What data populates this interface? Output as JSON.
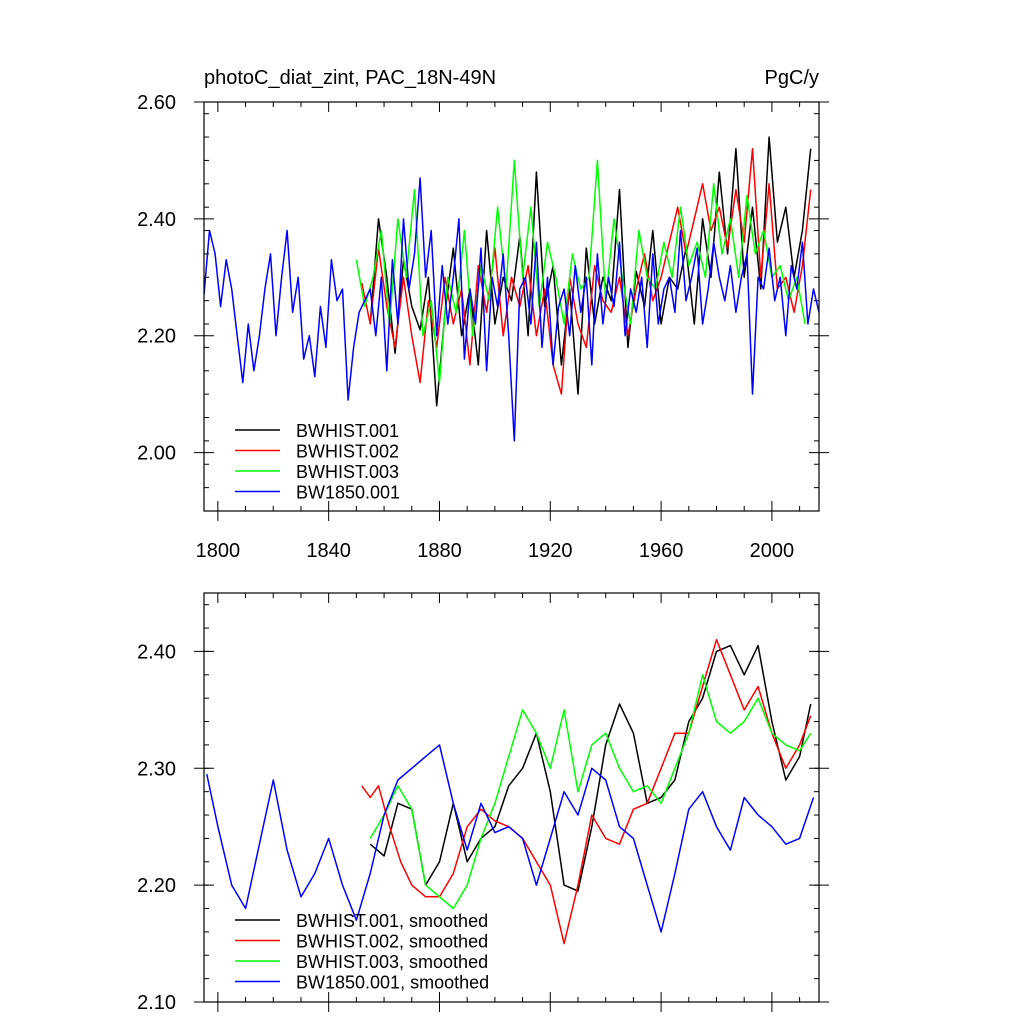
{
  "title_left": "photoC_diat_zint, PAC_18N-49N",
  "title_right": "PgC/y",
  "colors": {
    "BWHIST.001": "#000000",
    "BWHIST.002": "#ff0000",
    "BWHIST.003": "#00ff00",
    "BW1850.001": "#0000ff"
  },
  "chart_data": [
    {
      "type": "line",
      "title": "photoC_diat_zint, PAC_18N-49N",
      "units": "PgC/y",
      "xlim": [
        1795,
        2017
      ],
      "ylim": [
        1.9,
        2.6
      ],
      "xticks": [
        1800,
        1840,
        1880,
        1920,
        1960,
        2000
      ],
      "xticklabels": [
        "1800",
        "1840",
        "1880",
        "1920",
        "1960",
        "2000"
      ],
      "yticks": [
        2.0,
        2.2,
        2.4,
        2.6
      ],
      "yticklabels": [
        "2.00",
        "2.20",
        "2.40",
        "2.60"
      ],
      "legend_position": "bottom-left",
      "series": [
        {
          "name": "BWHIST.001",
          "color": "#000000",
          "x": [
            1855,
            1858,
            1861,
            1864,
            1867,
            1870,
            1873,
            1876,
            1879,
            1882,
            1885,
            1888,
            1891,
            1894,
            1897,
            1900,
            1903,
            1906,
            1909,
            1912,
            1915,
            1918,
            1921,
            1924,
            1927,
            1930,
            1933,
            1936,
            1939,
            1942,
            1945,
            1948,
            1951,
            1954,
            1957,
            1960,
            1963,
            1966,
            1969,
            1972,
            1975,
            1978,
            1981,
            1984,
            1987,
            1990,
            1993,
            1996,
            1999,
            2002,
            2005,
            2008,
            2011,
            2014
          ],
          "y": [
            2.22,
            2.4,
            2.3,
            2.17,
            2.33,
            2.25,
            2.21,
            2.3,
            2.08,
            2.24,
            2.35,
            2.2,
            2.28,
            2.15,
            2.38,
            2.22,
            2.3,
            2.26,
            2.37,
            2.2,
            2.48,
            2.25,
            2.32,
            2.15,
            2.28,
            2.1,
            2.35,
            2.22,
            2.3,
            2.26,
            2.45,
            2.18,
            2.31,
            2.25,
            2.38,
            2.22,
            2.3,
            2.28,
            2.35,
            2.22,
            2.4,
            2.3,
            2.48,
            2.34,
            2.52,
            2.3,
            2.42,
            2.28,
            2.54,
            2.36,
            2.42,
            2.3,
            2.38,
            2.52
          ]
        },
        {
          "name": "BWHIST.002",
          "color": "#ff0000",
          "x": [
            1852,
            1855,
            1858,
            1861,
            1864,
            1867,
            1870,
            1873,
            1876,
            1879,
            1882,
            1885,
            1888,
            1891,
            1894,
            1897,
            1900,
            1903,
            1906,
            1909,
            1912,
            1915,
            1918,
            1921,
            1924,
            1927,
            1930,
            1933,
            1936,
            1939,
            1942,
            1945,
            1948,
            1951,
            1954,
            1957,
            1960,
            1963,
            1966,
            1969,
            1972,
            1975,
            1978,
            1981,
            1984,
            1987,
            1990,
            1993,
            1996,
            1999,
            2002,
            2005,
            2008,
            2011,
            2014
          ],
          "y": [
            2.29,
            2.22,
            2.35,
            2.25,
            2.18,
            2.3,
            2.2,
            2.12,
            2.26,
            2.18,
            2.3,
            2.22,
            2.28,
            2.15,
            2.32,
            2.24,
            2.35,
            2.2,
            2.3,
            2.25,
            2.32,
            2.2,
            2.28,
            2.15,
            2.1,
            2.3,
            2.22,
            2.18,
            2.32,
            2.26,
            2.24,
            2.3,
            2.2,
            2.28,
            2.34,
            2.26,
            2.3,
            2.36,
            2.42,
            2.34,
            2.4,
            2.46,
            2.38,
            2.42,
            2.35,
            2.45,
            2.36,
            2.52,
            2.3,
            2.46,
            2.28,
            2.3,
            2.24,
            2.32,
            2.45
          ]
        },
        {
          "name": "BWHIST.003",
          "color": "#00ff00",
          "x": [
            1850,
            1853,
            1856,
            1859,
            1862,
            1865,
            1868,
            1871,
            1874,
            1877,
            1880,
            1883,
            1886,
            1889,
            1892,
            1895,
            1898,
            1901,
            1904,
            1907,
            1910,
            1913,
            1916,
            1919,
            1922,
            1925,
            1928,
            1931,
            1934,
            1937,
            1940,
            1943,
            1946,
            1949,
            1952,
            1955,
            1958,
            1961,
            1964,
            1967,
            1970,
            1973,
            1976,
            1979,
            1982,
            1985,
            1988,
            1991,
            1994,
            1997,
            2000,
            2003,
            2006,
            2009,
            2012
          ],
          "y": [
            2.33,
            2.25,
            2.3,
            2.38,
            2.22,
            2.4,
            2.3,
            2.45,
            2.2,
            2.26,
            2.12,
            2.3,
            2.24,
            2.38,
            2.2,
            2.32,
            2.26,
            2.42,
            2.28,
            2.5,
            2.3,
            2.42,
            2.25,
            2.36,
            2.3,
            2.22,
            2.34,
            2.28,
            2.3,
            2.5,
            2.26,
            2.4,
            2.3,
            2.22,
            2.38,
            2.3,
            2.28,
            2.36,
            2.3,
            2.42,
            2.32,
            2.36,
            2.3,
            2.46,
            2.34,
            2.4,
            2.3,
            2.44,
            2.34,
            2.38,
            2.3,
            2.32,
            2.26,
            2.3,
            2.22
          ]
        },
        {
          "name": "BW1850.001",
          "color": "#0000ff",
          "x": [
            1795,
            1797,
            1799,
            1801,
            1803,
            1805,
            1807,
            1809,
            1811,
            1813,
            1815,
            1817,
            1819,
            1821,
            1823,
            1825,
            1827,
            1829,
            1831,
            1833,
            1835,
            1837,
            1839,
            1841,
            1843,
            1845,
            1847,
            1849,
            1851,
            1853,
            1855,
            1857,
            1859,
            1861,
            1863,
            1865,
            1867,
            1869,
            1871,
            1873,
            1875,
            1877,
            1879,
            1881,
            1883,
            1885,
            1887,
            1889,
            1891,
            1893,
            1895,
            1897,
            1899,
            1901,
            1903,
            1905,
            1907,
            1909,
            1911,
            1913,
            1915,
            1917,
            1919,
            1921,
            1923,
            1925,
            1927,
            1929,
            1931,
            1933,
            1935,
            1937,
            1939,
            1941,
            1943,
            1945,
            1947,
            1949,
            1951,
            1953,
            1955,
            1957,
            1959,
            1961,
            1963,
            1965,
            1967,
            1969,
            1971,
            1973,
            1975,
            1977,
            1979,
            1981,
            1983,
            1985,
            1987,
            1989,
            1991,
            1993,
            1995,
            1997,
            1999,
            2001,
            2003,
            2005,
            2007,
            2009,
            2011,
            2013,
            2015,
            2017
          ],
          "y": [
            2.27,
            2.38,
            2.34,
            2.25,
            2.33,
            2.28,
            2.2,
            2.12,
            2.22,
            2.14,
            2.2,
            2.28,
            2.34,
            2.2,
            2.3,
            2.38,
            2.24,
            2.3,
            2.16,
            2.2,
            2.13,
            2.25,
            2.18,
            2.33,
            2.26,
            2.28,
            2.09,
            2.18,
            2.24,
            2.26,
            2.28,
            2.2,
            2.3,
            2.14,
            2.33,
            2.22,
            2.4,
            2.28,
            2.34,
            2.47,
            2.3,
            2.38,
            2.2,
            2.32,
            2.22,
            2.3,
            2.4,
            2.16,
            2.28,
            2.22,
            2.35,
            2.14,
            2.3,
            2.25,
            2.34,
            2.2,
            2.02,
            2.28,
            2.3,
            2.22,
            2.36,
            2.18,
            2.3,
            2.15,
            2.25,
            2.28,
            2.2,
            2.32,
            2.24,
            2.3,
            2.15,
            2.34,
            2.22,
            2.3,
            2.25,
            2.36,
            2.2,
            2.28,
            2.24,
            2.3,
            2.18,
            2.34,
            2.22,
            2.28,
            2.3,
            2.24,
            2.38,
            2.26,
            2.3,
            2.35,
            2.22,
            2.28,
            2.36,
            2.3,
            2.26,
            2.32,
            2.24,
            2.3,
            2.34,
            2.1,
            2.3,
            2.28,
            2.35,
            2.26,
            2.3,
            2.2,
            2.32,
            2.28,
            2.36,
            2.22,
            2.28,
            2.24
          ]
        }
      ]
    },
    {
      "type": "line",
      "xlim": [
        1795,
        2017
      ],
      "ylim": [
        2.1,
        2.45
      ],
      "yticks": [
        2.1,
        2.2,
        2.3,
        2.4
      ],
      "yticklabels": [
        "2.10",
        "2.20",
        "2.30",
        "2.40"
      ],
      "legend_position": "bottom-left",
      "series": [
        {
          "name": "BWHIST.001, smoothed",
          "color": "#000000",
          "x": [
            1855,
            1860,
            1865,
            1870,
            1875,
            1880,
            1885,
            1890,
            1895,
            1900,
            1905,
            1910,
            1915,
            1920,
            1925,
            1930,
            1935,
            1940,
            1945,
            1950,
            1955,
            1960,
            1965,
            1970,
            1975,
            1980,
            1985,
            1990,
            1995,
            2000,
            2005,
            2010,
            2014
          ],
          "y": [
            2.235,
            2.225,
            2.27,
            2.265,
            2.2,
            2.22,
            2.27,
            2.22,
            2.24,
            2.25,
            2.285,
            2.3,
            2.33,
            2.28,
            2.2,
            2.195,
            2.25,
            2.32,
            2.355,
            2.33,
            2.27,
            2.275,
            2.29,
            2.34,
            2.36,
            2.4,
            2.405,
            2.38,
            2.405,
            2.34,
            2.29,
            2.31,
            2.355
          ]
        },
        {
          "name": "BWHIST.002, smoothed",
          "color": "#ff0000",
          "x": [
            1852,
            1855,
            1858,
            1862,
            1866,
            1870,
            1875,
            1880,
            1885,
            1890,
            1895,
            1900,
            1905,
            1910,
            1915,
            1920,
            1925,
            1930,
            1935,
            1940,
            1945,
            1950,
            1955,
            1960,
            1965,
            1970,
            1975,
            1980,
            1985,
            1990,
            1995,
            2000,
            2005,
            2010,
            2014
          ],
          "y": [
            2.285,
            2.275,
            2.285,
            2.25,
            2.22,
            2.2,
            2.19,
            2.19,
            2.21,
            2.25,
            2.265,
            2.255,
            2.25,
            2.24,
            2.22,
            2.2,
            2.15,
            2.2,
            2.26,
            2.24,
            2.235,
            2.265,
            2.27,
            2.3,
            2.33,
            2.33,
            2.37,
            2.41,
            2.38,
            2.35,
            2.37,
            2.33,
            2.3,
            2.32,
            2.345
          ]
        },
        {
          "name": "BWHIST.003, smoothed",
          "color": "#00ff00",
          "x": [
            1855,
            1860,
            1865,
            1870,
            1875,
            1880,
            1885,
            1890,
            1895,
            1900,
            1905,
            1910,
            1915,
            1920,
            1925,
            1930,
            1935,
            1940,
            1945,
            1950,
            1955,
            1960,
            1965,
            1970,
            1975,
            1980,
            1985,
            1990,
            1995,
            2000,
            2005,
            2010,
            2014
          ],
          "y": [
            2.24,
            2.26,
            2.285,
            2.265,
            2.2,
            2.19,
            2.18,
            2.2,
            2.24,
            2.27,
            2.31,
            2.35,
            2.33,
            2.3,
            2.35,
            2.28,
            2.32,
            2.33,
            2.3,
            2.28,
            2.285,
            2.27,
            2.3,
            2.33,
            2.38,
            2.34,
            2.33,
            2.34,
            2.36,
            2.33,
            2.32,
            2.315,
            2.33
          ]
        },
        {
          "name": "BW1850.001, smoothed",
          "color": "#0000ff",
          "x": [
            1796,
            1800,
            1805,
            1810,
            1815,
            1820,
            1825,
            1830,
            1835,
            1840,
            1845,
            1850,
            1855,
            1860,
            1865,
            1870,
            1875,
            1880,
            1885,
            1890,
            1895,
            1900,
            1905,
            1910,
            1915,
            1920,
            1925,
            1930,
            1935,
            1940,
            1945,
            1950,
            1955,
            1960,
            1965,
            1970,
            1975,
            1980,
            1985,
            1990,
            1995,
            2000,
            2005,
            2010,
            2015
          ],
          "y": [
            2.295,
            2.25,
            2.2,
            2.18,
            2.235,
            2.29,
            2.23,
            2.19,
            2.21,
            2.24,
            2.2,
            2.17,
            2.21,
            2.26,
            2.29,
            2.3,
            2.31,
            2.32,
            2.27,
            2.23,
            2.27,
            2.245,
            2.25,
            2.24,
            2.2,
            2.24,
            2.28,
            2.26,
            2.3,
            2.29,
            2.25,
            2.24,
            2.2,
            2.16,
            2.21,
            2.265,
            2.28,
            2.25,
            2.23,
            2.275,
            2.26,
            2.25,
            2.235,
            2.24,
            2.275
          ]
        }
      ]
    }
  ]
}
